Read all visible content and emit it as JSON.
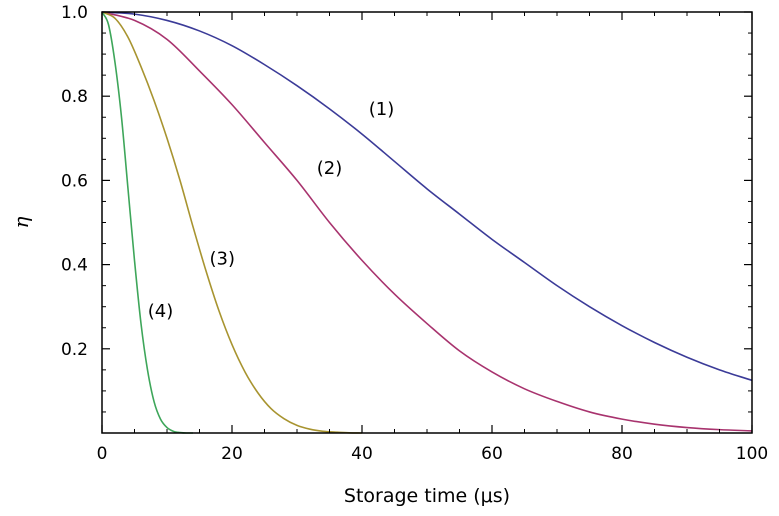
{
  "chart_data": {
    "type": "line",
    "xlabel": "Storage time (μs)",
    "ylabel": "η",
    "xlim": [
      0,
      100
    ],
    "ylim": [
      0,
      1.0
    ],
    "xticks": [
      0,
      20,
      40,
      60,
      80,
      100
    ],
    "xtick_labels": [
      "0",
      "20",
      "40",
      "60",
      "80",
      "100"
    ],
    "yticks": [
      0.2,
      0.4,
      0.6,
      0.8,
      1.0
    ],
    "ytick_labels": [
      "0.2",
      "0.4",
      "0.6",
      "0.8",
      "1.0"
    ],
    "grid": false,
    "series": [
      {
        "name": "(1)",
        "color": "#3b3b98",
        "x": [
          0,
          5,
          10,
          15,
          20,
          25,
          30,
          35,
          40,
          45,
          50,
          55,
          60,
          65,
          70,
          75,
          80,
          85,
          90,
          95,
          100
        ],
        "y": [
          1.0,
          0.995,
          0.98,
          0.955,
          0.92,
          0.875,
          0.825,
          0.77,
          0.71,
          0.645,
          0.58,
          0.52,
          0.46,
          0.405,
          0.35,
          0.3,
          0.255,
          0.215,
          0.18,
          0.15,
          0.125
        ]
      },
      {
        "name": "(2)",
        "color": "#a8336e",
        "x": [
          0,
          5,
          10,
          15,
          20,
          25,
          30,
          35,
          40,
          45,
          50,
          55,
          60,
          65,
          70,
          75,
          80,
          85,
          90,
          95,
          100
        ],
        "y": [
          1.0,
          0.98,
          0.935,
          0.86,
          0.78,
          0.69,
          0.6,
          0.5,
          0.41,
          0.33,
          0.26,
          0.195,
          0.145,
          0.105,
          0.075,
          0.05,
          0.033,
          0.021,
          0.013,
          0.008,
          0.005
        ]
      },
      {
        "name": "(3)",
        "color": "#a89430",
        "x": [
          0,
          2,
          4,
          6,
          8,
          10,
          12,
          14,
          16,
          18,
          20,
          22,
          24,
          26,
          28,
          30,
          32,
          34,
          36,
          38,
          40
        ],
        "y": [
          1.0,
          0.985,
          0.94,
          0.87,
          0.79,
          0.7,
          0.6,
          0.49,
          0.385,
          0.29,
          0.21,
          0.145,
          0.095,
          0.058,
          0.034,
          0.018,
          0.009,
          0.004,
          0.002,
          0.0005,
          0.0
        ]
      },
      {
        "name": "(4)",
        "color": "#3ea65a",
        "x": [
          0,
          1,
          2,
          3,
          4,
          5,
          6,
          7,
          8,
          9,
          10,
          11,
          12,
          13,
          14
        ],
        "y": [
          1.0,
          0.97,
          0.88,
          0.75,
          0.58,
          0.41,
          0.26,
          0.15,
          0.075,
          0.033,
          0.013,
          0.004,
          0.001,
          0.0,
          0.0
        ]
      }
    ],
    "annotations": [
      {
        "text": "(1)",
        "x": 43,
        "y": 0.755
      },
      {
        "text": "(2)",
        "x": 35,
        "y": 0.615
      },
      {
        "text": "(3)",
        "x": 18.5,
        "y": 0.4
      },
      {
        "text": "(4)",
        "x": 9,
        "y": 0.275
      }
    ]
  }
}
